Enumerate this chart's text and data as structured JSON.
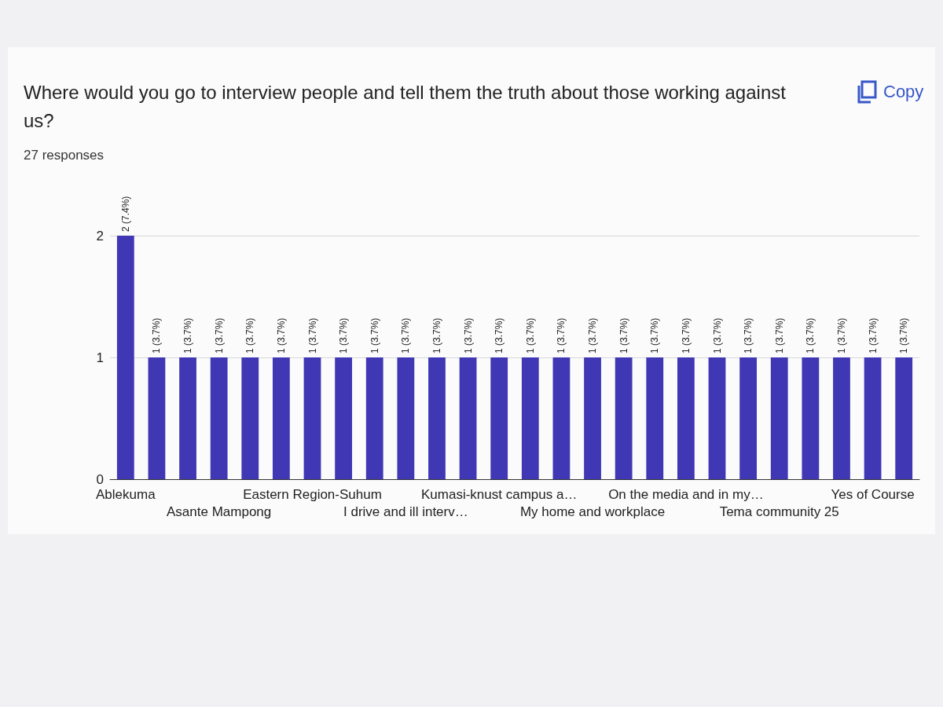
{
  "chart_data": {
    "type": "bar",
    "title": "Where would you go to interview people and tell them the truth about those working against us?",
    "subtitle": "27 responses",
    "annotations": [
      "Copy"
    ],
    "categories": [
      "Ablekuma",
      null,
      null,
      "Asante Mampong",
      null,
      null,
      "Eastern Region-Suhum",
      null,
      null,
      "I drive and ill interv…",
      null,
      null,
      "Kumasi-knust campus a…",
      null,
      null,
      "My home and workplace",
      null,
      null,
      "On the media and in my…",
      null,
      null,
      "Tema community 25",
      null,
      null,
      "Yes of Course",
      null
    ],
    "values": [
      2,
      1,
      1,
      1,
      1,
      1,
      1,
      1,
      1,
      1,
      1,
      1,
      1,
      1,
      1,
      1,
      1,
      1,
      1,
      1,
      1,
      1,
      1,
      1,
      1,
      1
    ],
    "value_labels": [
      "2 (7.4%)",
      "1 (3.7%)",
      "1 (3.7%)",
      "1 (3.7%)",
      "1 (3.7%)",
      "1 (3.7%)",
      "1 (3.7%)",
      "1 (3.7%)",
      "1 (3.7%)",
      "1 (3.7%)",
      "1 (3.7%)",
      "1 (3.7%)",
      "1 (3.7%)",
      "1 (3.7%)",
      "1 (3.7%)",
      "1 (3.7%)",
      "1 (3.7%)",
      "1 (3.7%)",
      "1 (3.7%)",
      "1 (3.7%)",
      "1 (3.7%)",
      "1 (3.7%)",
      "1 (3.7%)",
      "1 (3.7%)",
      "1 (3.7%)",
      "1 (3.7%)"
    ],
    "color": "#3f37b3",
    "ylim": [
      0,
      2
    ],
    "yticks": [
      0,
      1,
      2
    ],
    "grid": "y"
  }
}
